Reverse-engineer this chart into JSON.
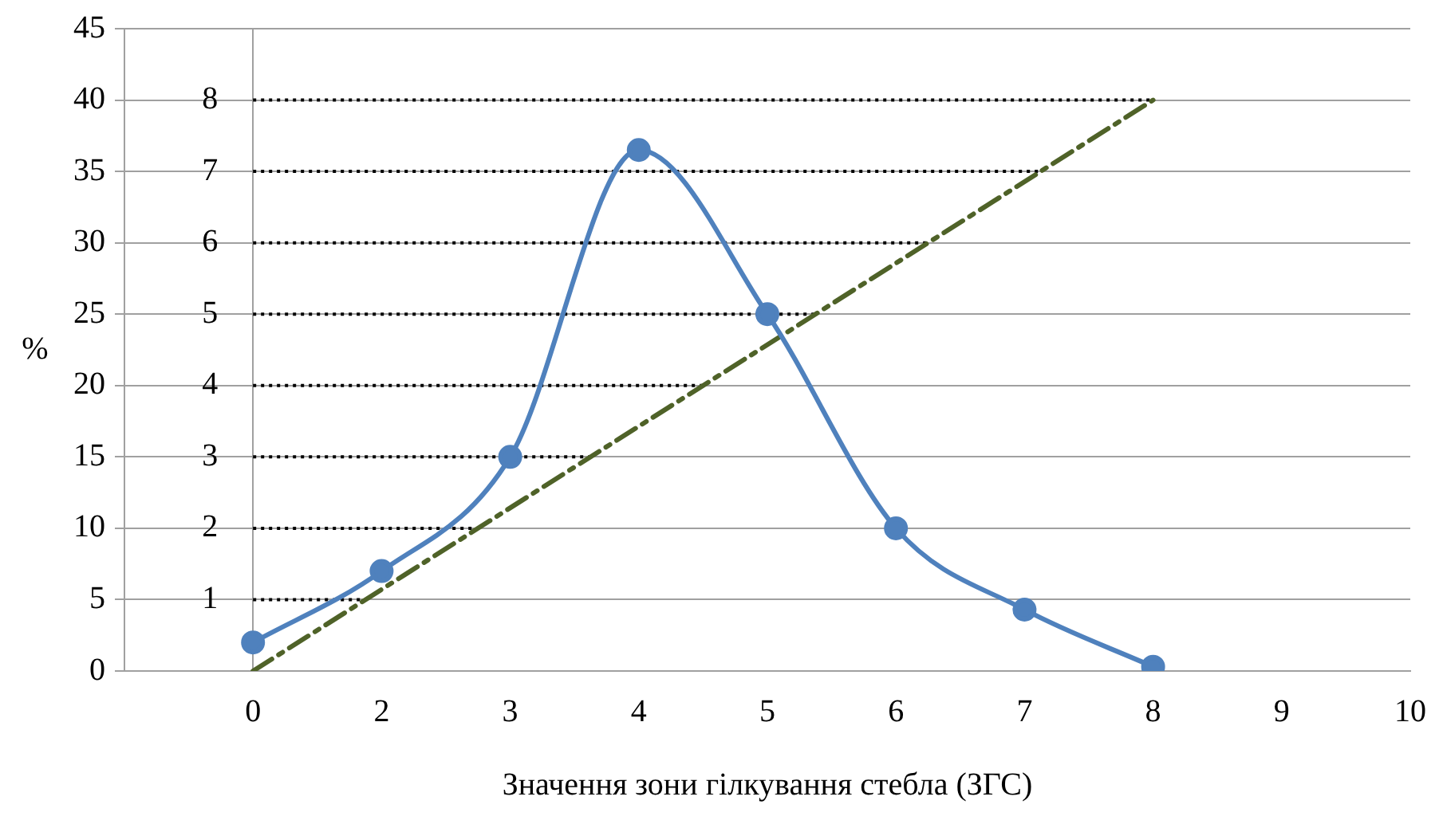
{
  "chart_data": {
    "type": "line",
    "xlabel": "Значення зони гілкування стебла (ЗГС)",
    "ylabel": "%",
    "categories": [
      null,
      "0",
      "2",
      "3",
      "4",
      "5",
      "6",
      "7",
      "8",
      "9",
      "10"
    ],
    "series": [
      {
        "color": "#4f81bd",
        "marker": "circle",
        "line_style": "solid",
        "values": [
          null,
          2,
          7,
          15,
          36.5,
          25,
          10,
          4.3,
          0.3,
          null,
          null
        ]
      },
      {
        "color": "#4f6228",
        "marker": "none",
        "line_style": "dashed",
        "values": [
          null,
          0,
          null,
          null,
          null,
          null,
          null,
          null,
          40,
          null,
          null
        ]
      }
    ],
    "ylim": [
      0,
      45
    ],
    "yticks": [
      0,
      5,
      10,
      15,
      20,
      25,
      30,
      35,
      40,
      45
    ],
    "grid": "y",
    "legend": false,
    "ref_lines": [
      {
        "axis": "y2",
        "value": 1,
        "color": "#000000",
        "line_style": "dotted"
      },
      {
        "axis": "y2",
        "value": 2,
        "color": "#000000",
        "line_style": "dotted"
      },
      {
        "axis": "y2",
        "value": 3,
        "color": "#000000",
        "line_style": "dotted"
      },
      {
        "axis": "y2",
        "value": 4,
        "color": "#000000",
        "line_style": "dotted"
      },
      {
        "axis": "y2",
        "value": 5,
        "color": "#000000",
        "line_style": "dotted"
      },
      {
        "axis": "y2",
        "value": 6,
        "color": "#000000",
        "line_style": "dotted"
      },
      {
        "axis": "y2",
        "value": 7,
        "color": "#000000",
        "line_style": "dotted"
      },
      {
        "axis": "y2",
        "value": 8,
        "color": "#000000",
        "line_style": "dotted"
      }
    ],
    "y2lim": [
      0,
      9
    ],
    "y2ticks": [
      1,
      2,
      3,
      4,
      5,
      6,
      7,
      8
    ]
  }
}
